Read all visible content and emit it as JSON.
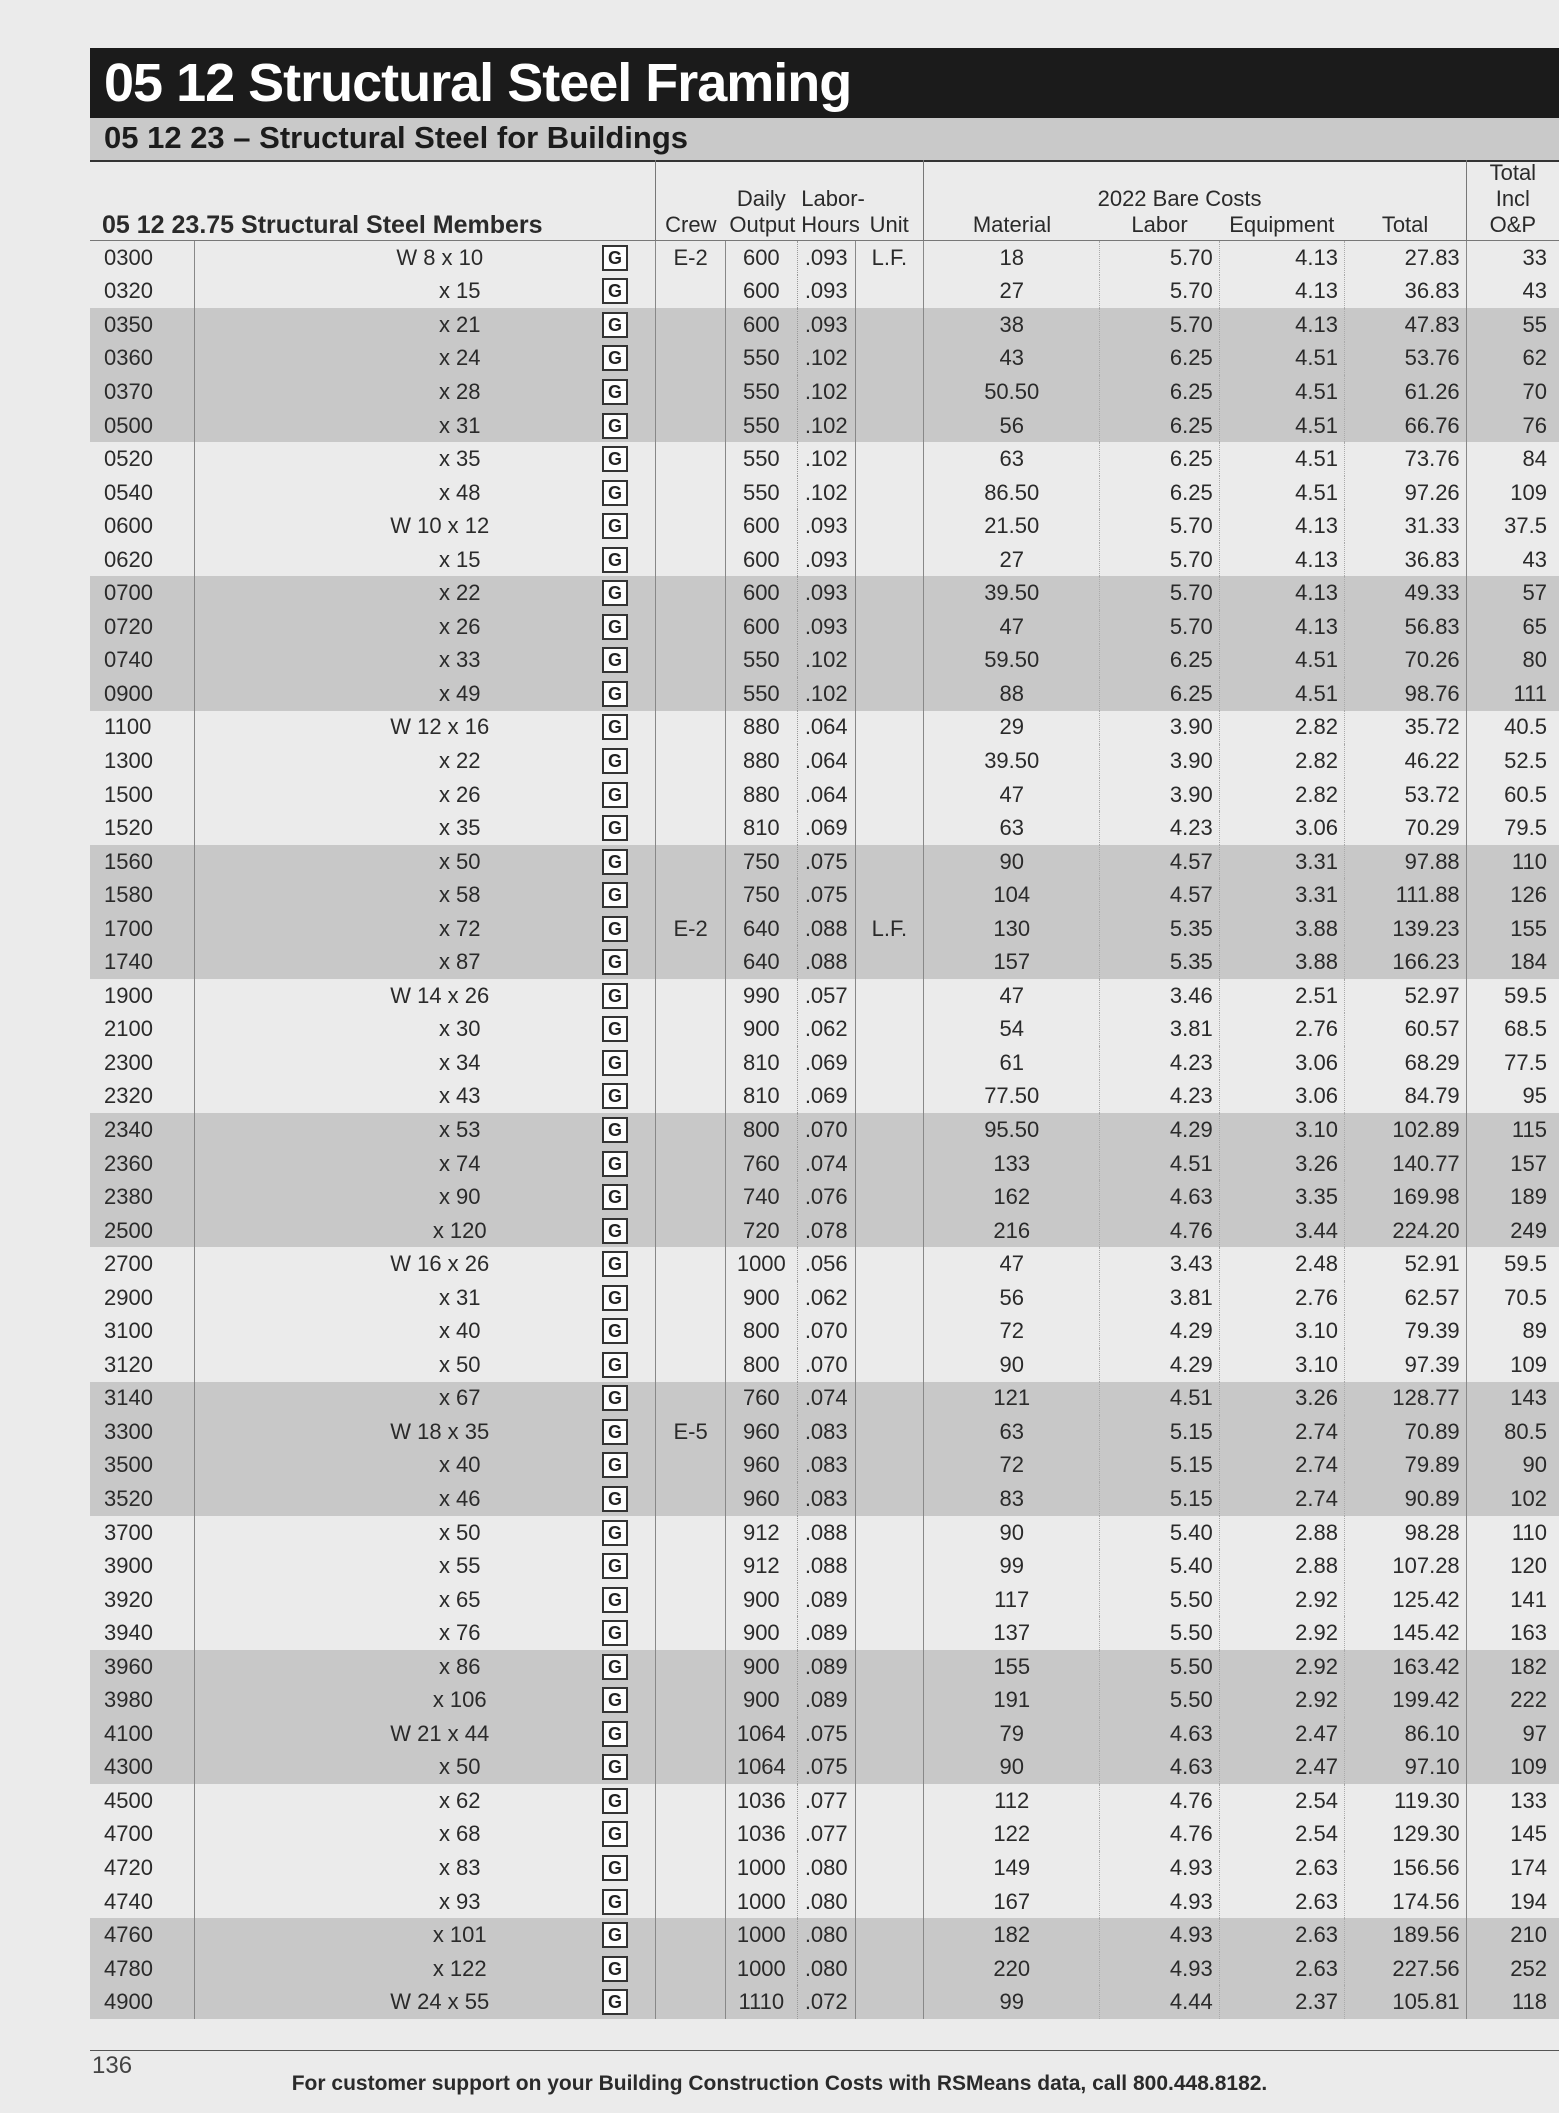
{
  "header": {
    "title": "05 12 Structural Steel Framing",
    "subtitle": "05 12 23 – Structural Steel for Buildings"
  },
  "table": {
    "section_title": "05 12 23.75 Structural Steel Members",
    "columns": {
      "crew": "Crew",
      "daily_output": "Daily Output",
      "labor_hours": "Labor- Hours",
      "unit": "Unit",
      "bare_costs_group": "2022 Bare Costs",
      "material": "Material",
      "labor": "Labor",
      "equipment": "Equipment",
      "total": "Total",
      "total_incl_op": "Total Incl O&P"
    },
    "rows": [
      {
        "line": "0300",
        "desc": "W 8 x 10",
        "g": "G",
        "crew": "E-2",
        "output": "600",
        "hours": ".093",
        "unit": "L.F.",
        "material": "18",
        "labor": "5.70",
        "equipment": "4.13",
        "total": "27.83",
        "op": "33"
      },
      {
        "line": "0320",
        "desc": "x 15",
        "g": "G",
        "crew": "",
        "output": "600",
        "hours": ".093",
        "unit": "",
        "material": "27",
        "labor": "5.70",
        "equipment": "4.13",
        "total": "36.83",
        "op": "43"
      },
      {
        "line": "0350",
        "desc": "x 21",
        "g": "G",
        "crew": "",
        "output": "600",
        "hours": ".093",
        "unit": "",
        "material": "38",
        "labor": "5.70",
        "equipment": "4.13",
        "total": "47.83",
        "op": "55"
      },
      {
        "line": "0360",
        "desc": "x 24",
        "g": "G",
        "crew": "",
        "output": "550",
        "hours": ".102",
        "unit": "",
        "material": "43",
        "labor": "6.25",
        "equipment": "4.51",
        "total": "53.76",
        "op": "62"
      },
      {
        "line": "0370",
        "desc": "x 28",
        "g": "G",
        "crew": "",
        "output": "550",
        "hours": ".102",
        "unit": "",
        "material": "50.50",
        "labor": "6.25",
        "equipment": "4.51",
        "total": "61.26",
        "op": "70"
      },
      {
        "line": "0500",
        "desc": "x 31",
        "g": "G",
        "crew": "",
        "output": "550",
        "hours": ".102",
        "unit": "",
        "material": "56",
        "labor": "6.25",
        "equipment": "4.51",
        "total": "66.76",
        "op": "76"
      },
      {
        "line": "0520",
        "desc": "x 35",
        "g": "G",
        "crew": "",
        "output": "550",
        "hours": ".102",
        "unit": "",
        "material": "63",
        "labor": "6.25",
        "equipment": "4.51",
        "total": "73.76",
        "op": "84"
      },
      {
        "line": "0540",
        "desc": "x 48",
        "g": "G",
        "crew": "",
        "output": "550",
        "hours": ".102",
        "unit": "",
        "material": "86.50",
        "labor": "6.25",
        "equipment": "4.51",
        "total": "97.26",
        "op": "109"
      },
      {
        "line": "0600",
        "desc": "W 10 x 12",
        "g": "G",
        "crew": "",
        "output": "600",
        "hours": ".093",
        "unit": "",
        "material": "21.50",
        "labor": "5.70",
        "equipment": "4.13",
        "total": "31.33",
        "op": "37.5"
      },
      {
        "line": "0620",
        "desc": "x 15",
        "g": "G",
        "crew": "",
        "output": "600",
        "hours": ".093",
        "unit": "",
        "material": "27",
        "labor": "5.70",
        "equipment": "4.13",
        "total": "36.83",
        "op": "43"
      },
      {
        "line": "0700",
        "desc": "x 22",
        "g": "G",
        "crew": "",
        "output": "600",
        "hours": ".093",
        "unit": "",
        "material": "39.50",
        "labor": "5.70",
        "equipment": "4.13",
        "total": "49.33",
        "op": "57"
      },
      {
        "line": "0720",
        "desc": "x 26",
        "g": "G",
        "crew": "",
        "output": "600",
        "hours": ".093",
        "unit": "",
        "material": "47",
        "labor": "5.70",
        "equipment": "4.13",
        "total": "56.83",
        "op": "65"
      },
      {
        "line": "0740",
        "desc": "x 33",
        "g": "G",
        "crew": "",
        "output": "550",
        "hours": ".102",
        "unit": "",
        "material": "59.50",
        "labor": "6.25",
        "equipment": "4.51",
        "total": "70.26",
        "op": "80"
      },
      {
        "line": "0900",
        "desc": "x 49",
        "g": "G",
        "crew": "",
        "output": "550",
        "hours": ".102",
        "unit": "",
        "material": "88",
        "labor": "6.25",
        "equipment": "4.51",
        "total": "98.76",
        "op": "111"
      },
      {
        "line": "1100",
        "desc": "W 12 x 16",
        "g": "G",
        "crew": "",
        "output": "880",
        "hours": ".064",
        "unit": "",
        "material": "29",
        "labor": "3.90",
        "equipment": "2.82",
        "total": "35.72",
        "op": "40.5"
      },
      {
        "line": "1300",
        "desc": "x 22",
        "g": "G",
        "crew": "",
        "output": "880",
        "hours": ".064",
        "unit": "",
        "material": "39.50",
        "labor": "3.90",
        "equipment": "2.82",
        "total": "46.22",
        "op": "52.5"
      },
      {
        "line": "1500",
        "desc": "x 26",
        "g": "G",
        "crew": "",
        "output": "880",
        "hours": ".064",
        "unit": "",
        "material": "47",
        "labor": "3.90",
        "equipment": "2.82",
        "total": "53.72",
        "op": "60.5"
      },
      {
        "line": "1520",
        "desc": "x 35",
        "g": "G",
        "crew": "",
        "output": "810",
        "hours": ".069",
        "unit": "",
        "material": "63",
        "labor": "4.23",
        "equipment": "3.06",
        "total": "70.29",
        "op": "79.5"
      },
      {
        "line": "1560",
        "desc": "x 50",
        "g": "G",
        "crew": "",
        "output": "750",
        "hours": ".075",
        "unit": "",
        "material": "90",
        "labor": "4.57",
        "equipment": "3.31",
        "total": "97.88",
        "op": "110"
      },
      {
        "line": "1580",
        "desc": "x 58",
        "g": "G",
        "crew": "",
        "output": "750",
        "hours": ".075",
        "unit": "",
        "material": "104",
        "labor": "4.57",
        "equipment": "3.31",
        "total": "111.88",
        "op": "126"
      },
      {
        "line": "1700",
        "desc": "x 72",
        "g": "G",
        "crew": "E-2",
        "output": "640",
        "hours": ".088",
        "unit": "L.F.",
        "material": "130",
        "labor": "5.35",
        "equipment": "3.88",
        "total": "139.23",
        "op": "155"
      },
      {
        "line": "1740",
        "desc": "x 87",
        "g": "G",
        "crew": "",
        "output": "640",
        "hours": ".088",
        "unit": "",
        "material": "157",
        "labor": "5.35",
        "equipment": "3.88",
        "total": "166.23",
        "op": "184"
      },
      {
        "line": "1900",
        "desc": "W 14 x 26",
        "g": "G",
        "crew": "",
        "output": "990",
        "hours": ".057",
        "unit": "",
        "material": "47",
        "labor": "3.46",
        "equipment": "2.51",
        "total": "52.97",
        "op": "59.5"
      },
      {
        "line": "2100",
        "desc": "x 30",
        "g": "G",
        "crew": "",
        "output": "900",
        "hours": ".062",
        "unit": "",
        "material": "54",
        "labor": "3.81",
        "equipment": "2.76",
        "total": "60.57",
        "op": "68.5"
      },
      {
        "line": "2300",
        "desc": "x 34",
        "g": "G",
        "crew": "",
        "output": "810",
        "hours": ".069",
        "unit": "",
        "material": "61",
        "labor": "4.23",
        "equipment": "3.06",
        "total": "68.29",
        "op": "77.5"
      },
      {
        "line": "2320",
        "desc": "x 43",
        "g": "G",
        "crew": "",
        "output": "810",
        "hours": ".069",
        "unit": "",
        "material": "77.50",
        "labor": "4.23",
        "equipment": "3.06",
        "total": "84.79",
        "op": "95"
      },
      {
        "line": "2340",
        "desc": "x 53",
        "g": "G",
        "crew": "",
        "output": "800",
        "hours": ".070",
        "unit": "",
        "material": "95.50",
        "labor": "4.29",
        "equipment": "3.10",
        "total": "102.89",
        "op": "115"
      },
      {
        "line": "2360",
        "desc": "x 74",
        "g": "G",
        "crew": "",
        "output": "760",
        "hours": ".074",
        "unit": "",
        "material": "133",
        "labor": "4.51",
        "equipment": "3.26",
        "total": "140.77",
        "op": "157"
      },
      {
        "line": "2380",
        "desc": "x 90",
        "g": "G",
        "crew": "",
        "output": "740",
        "hours": ".076",
        "unit": "",
        "material": "162",
        "labor": "4.63",
        "equipment": "3.35",
        "total": "169.98",
        "op": "189"
      },
      {
        "line": "2500",
        "desc": "x 120",
        "g": "G",
        "crew": "",
        "output": "720",
        "hours": ".078",
        "unit": "",
        "material": "216",
        "labor": "4.76",
        "equipment": "3.44",
        "total": "224.20",
        "op": "249"
      },
      {
        "line": "2700",
        "desc": "W 16 x 26",
        "g": "G",
        "crew": "",
        "output": "1000",
        "hours": ".056",
        "unit": "",
        "material": "47",
        "labor": "3.43",
        "equipment": "2.48",
        "total": "52.91",
        "op": "59.5"
      },
      {
        "line": "2900",
        "desc": "x 31",
        "g": "G",
        "crew": "",
        "output": "900",
        "hours": ".062",
        "unit": "",
        "material": "56",
        "labor": "3.81",
        "equipment": "2.76",
        "total": "62.57",
        "op": "70.5"
      },
      {
        "line": "3100",
        "desc": "x 40",
        "g": "G",
        "crew": "",
        "output": "800",
        "hours": ".070",
        "unit": "",
        "material": "72",
        "labor": "4.29",
        "equipment": "3.10",
        "total": "79.39",
        "op": "89"
      },
      {
        "line": "3120",
        "desc": "x 50",
        "g": "G",
        "crew": "",
        "output": "800",
        "hours": ".070",
        "unit": "",
        "material": "90",
        "labor": "4.29",
        "equipment": "3.10",
        "total": "97.39",
        "op": "109"
      },
      {
        "line": "3140",
        "desc": "x 67",
        "g": "G",
        "crew": "",
        "output": "760",
        "hours": ".074",
        "unit": "",
        "material": "121",
        "labor": "4.51",
        "equipment": "3.26",
        "total": "128.77",
        "op": "143"
      },
      {
        "line": "3300",
        "desc": "W 18 x 35",
        "g": "G",
        "crew": "E-5",
        "output": "960",
        "hours": ".083",
        "unit": "",
        "material": "63",
        "labor": "5.15",
        "equipment": "2.74",
        "total": "70.89",
        "op": "80.5"
      },
      {
        "line": "3500",
        "desc": "x 40",
        "g": "G",
        "crew": "",
        "output": "960",
        "hours": ".083",
        "unit": "",
        "material": "72",
        "labor": "5.15",
        "equipment": "2.74",
        "total": "79.89",
        "op": "90"
      },
      {
        "line": "3520",
        "desc": "x 46",
        "g": "G",
        "crew": "",
        "output": "960",
        "hours": ".083",
        "unit": "",
        "material": "83",
        "labor": "5.15",
        "equipment": "2.74",
        "total": "90.89",
        "op": "102"
      },
      {
        "line": "3700",
        "desc": "x 50",
        "g": "G",
        "crew": "",
        "output": "912",
        "hours": ".088",
        "unit": "",
        "material": "90",
        "labor": "5.40",
        "equipment": "2.88",
        "total": "98.28",
        "op": "110"
      },
      {
        "line": "3900",
        "desc": "x 55",
        "g": "G",
        "crew": "",
        "output": "912",
        "hours": ".088",
        "unit": "",
        "material": "99",
        "labor": "5.40",
        "equipment": "2.88",
        "total": "107.28",
        "op": "120"
      },
      {
        "line": "3920",
        "desc": "x 65",
        "g": "G",
        "crew": "",
        "output": "900",
        "hours": ".089",
        "unit": "",
        "material": "117",
        "labor": "5.50",
        "equipment": "2.92",
        "total": "125.42",
        "op": "141"
      },
      {
        "line": "3940",
        "desc": "x 76",
        "g": "G",
        "crew": "",
        "output": "900",
        "hours": ".089",
        "unit": "",
        "material": "137",
        "labor": "5.50",
        "equipment": "2.92",
        "total": "145.42",
        "op": "163"
      },
      {
        "line": "3960",
        "desc": "x 86",
        "g": "G",
        "crew": "",
        "output": "900",
        "hours": ".089",
        "unit": "",
        "material": "155",
        "labor": "5.50",
        "equipment": "2.92",
        "total": "163.42",
        "op": "182"
      },
      {
        "line": "3980",
        "desc": "x 106",
        "g": "G",
        "crew": "",
        "output": "900",
        "hours": ".089",
        "unit": "",
        "material": "191",
        "labor": "5.50",
        "equipment": "2.92",
        "total": "199.42",
        "op": "222"
      },
      {
        "line": "4100",
        "desc": "W 21 x 44",
        "g": "G",
        "crew": "",
        "output": "1064",
        "hours": ".075",
        "unit": "",
        "material": "79",
        "labor": "4.63",
        "equipment": "2.47",
        "total": "86.10",
        "op": "97"
      },
      {
        "line": "4300",
        "desc": "x 50",
        "g": "G",
        "crew": "",
        "output": "1064",
        "hours": ".075",
        "unit": "",
        "material": "90",
        "labor": "4.63",
        "equipment": "2.47",
        "total": "97.10",
        "op": "109"
      },
      {
        "line": "4500",
        "desc": "x 62",
        "g": "G",
        "crew": "",
        "output": "1036",
        "hours": ".077",
        "unit": "",
        "material": "112",
        "labor": "4.76",
        "equipment": "2.54",
        "total": "119.30",
        "op": "133"
      },
      {
        "line": "4700",
        "desc": "x 68",
        "g": "G",
        "crew": "",
        "output": "1036",
        "hours": ".077",
        "unit": "",
        "material": "122",
        "labor": "4.76",
        "equipment": "2.54",
        "total": "129.30",
        "op": "145"
      },
      {
        "line": "4720",
        "desc": "x 83",
        "g": "G",
        "crew": "",
        "output": "1000",
        "hours": ".080",
        "unit": "",
        "material": "149",
        "labor": "4.93",
        "equipment": "2.63",
        "total": "156.56",
        "op": "174"
      },
      {
        "line": "4740",
        "desc": "x 93",
        "g": "G",
        "crew": "",
        "output": "1000",
        "hours": ".080",
        "unit": "",
        "material": "167",
        "labor": "4.93",
        "equipment": "2.63",
        "total": "174.56",
        "op": "194"
      },
      {
        "line": "4760",
        "desc": "x 101",
        "g": "G",
        "crew": "",
        "output": "1000",
        "hours": ".080",
        "unit": "",
        "material": "182",
        "labor": "4.93",
        "equipment": "2.63",
        "total": "189.56",
        "op": "210"
      },
      {
        "line": "4780",
        "desc": "x 122",
        "g": "G",
        "crew": "",
        "output": "1000",
        "hours": ".080",
        "unit": "",
        "material": "220",
        "labor": "4.93",
        "equipment": "2.63",
        "total": "227.56",
        "op": "252"
      },
      {
        "line": "4900",
        "desc": "W 24 x 55",
        "g": "G",
        "crew": "",
        "output": "1110",
        "hours": ".072",
        "unit": "",
        "material": "99",
        "labor": "4.44",
        "equipment": "2.37",
        "total": "105.81",
        "op": "118"
      }
    ]
  },
  "footer": {
    "page_number": "136",
    "support_text": "For customer support on your Building Construction Costs with RSMeans data, call 800.448.8182."
  }
}
